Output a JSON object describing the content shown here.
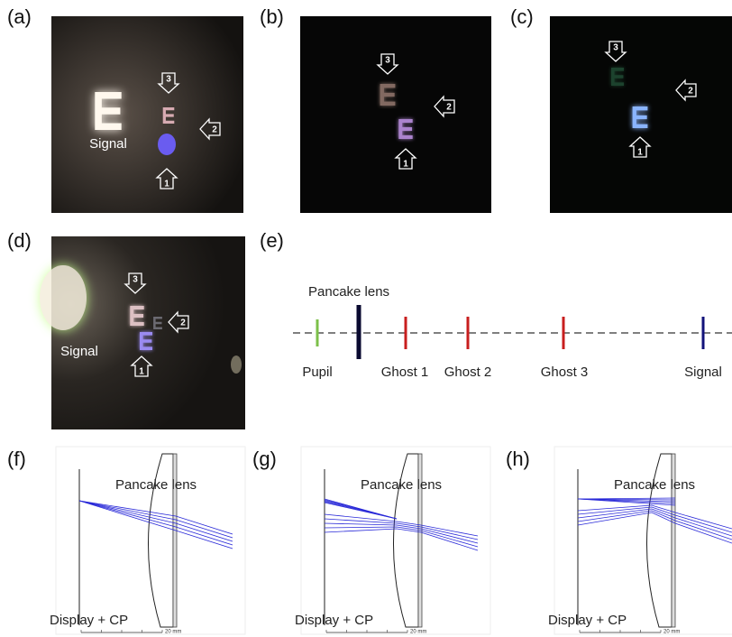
{
  "photos": [
    {
      "label": "(a)",
      "signal": "Signal",
      "markers": [
        "3",
        "2",
        "1"
      ]
    },
    {
      "label": "(b)",
      "markers": [
        "3",
        "2",
        "1"
      ]
    },
    {
      "label": "(c)",
      "markers": [
        "3",
        "2",
        "1"
      ]
    },
    {
      "label": "(d)",
      "signal": "Signal",
      "markers": [
        "3",
        "2",
        "1"
      ]
    }
  ],
  "diagram": {
    "label": "(e)",
    "lens": "Pancake lens",
    "planes": [
      "Pupil",
      "Ghost 1",
      "Ghost 2",
      "Ghost 3",
      "Signal"
    ]
  },
  "ray_traces": [
    {
      "label": "(f)",
      "lens": "Pancake lens",
      "display": "Display + CP",
      "scale": "20 mm"
    },
    {
      "label": "(g)",
      "lens": "Pancake lens",
      "display": "Display + CP",
      "scale": "20 mm"
    },
    {
      "label": "(h)",
      "lens": "Pancake lens",
      "display": "Display + CP",
      "scale": "20 mm"
    }
  ]
}
